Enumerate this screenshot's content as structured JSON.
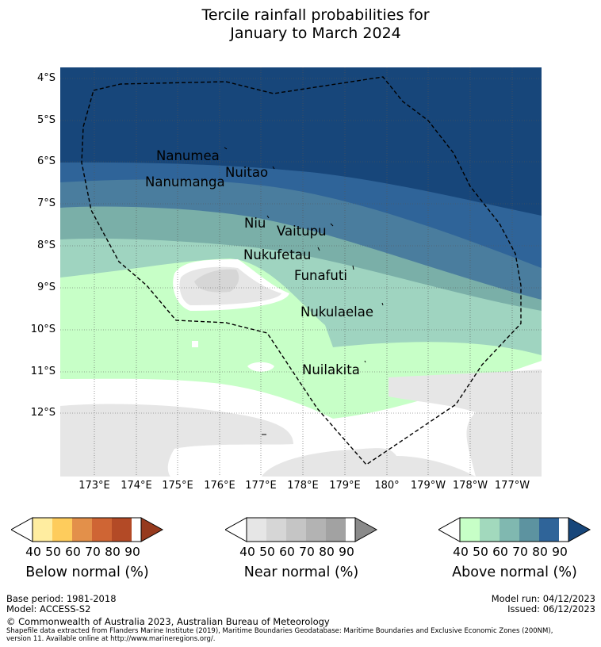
{
  "title": {
    "line1": "Tercile rainfall probabilities for",
    "line2": "January to March 2024"
  },
  "map": {
    "y_ticks": [
      "4°S",
      "5°S",
      "6°S",
      "7°S",
      "8°S",
      "9°S",
      "10°S",
      "11°S",
      "12°S"
    ],
    "x_ticks": [
      "173°E",
      "174°E",
      "175°E",
      "176°E",
      "177°E",
      "178°E",
      "179°E",
      "180°",
      "179°W",
      "178°W",
      "177°W"
    ],
    "islands": [
      "Nanumea",
      "Nuitao",
      "Nanumanga",
      "Niu",
      "Vaitupu",
      "Nukufetau",
      "Funafuti",
      "Nukulaelae",
      "Nuilakita"
    ]
  },
  "colorbars": [
    {
      "label": "Below normal (%)",
      "ticks": [
        "40",
        "50",
        "60",
        "70",
        "80",
        "90"
      ],
      "colors": [
        "#ffeda0",
        "#fecc5c",
        "#e3904a",
        "#cf6534",
        "#b34a26",
        "#963a1e"
      ],
      "end_color": "#963a1e"
    },
    {
      "label": "Near normal (%)",
      "ticks": [
        "40",
        "50",
        "60",
        "70",
        "80",
        "90"
      ],
      "colors": [
        "#e6e6e6",
        "#d6d6d6",
        "#c5c5c5",
        "#b3b3b3",
        "#a2a2a2",
        "#8a8a8a"
      ],
      "end_color": "#8a8a8a"
    },
    {
      "label": "Above normal (%)",
      "ticks": [
        "40",
        "50",
        "60",
        "70",
        "80",
        "90"
      ],
      "colors": [
        "#c7ffc7",
        "#a2d9bd",
        "#80b8b0",
        "#5d93a0",
        "#2f6499",
        "#17467a"
      ],
      "end_color": "#17467a"
    }
  ],
  "footer": {
    "base_period": "Base period: 1981-2018",
    "model": "Model: ACCESS-S2",
    "model_run": "Model run: 04/12/2023",
    "issued": "Issued: 06/12/2023",
    "copyright": "© Commonwealth of Australia 2023, Australian Bureau of Meteorology",
    "shapefile_1": "Shapefile data extracted from Flanders Marine Institute (2019), Maritime Boundaries Geodatabase: Maritime Boundaries and Exclusive Economic Zones (200NM),",
    "shapefile_2": "version 11. Available online at http://www.marineregions.org/."
  }
}
